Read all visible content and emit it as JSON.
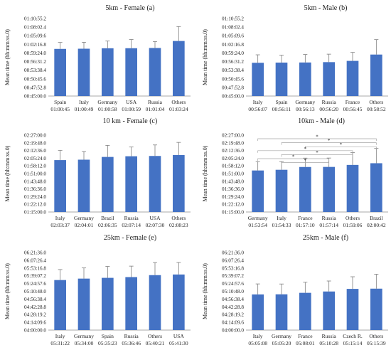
{
  "colors": {
    "bar": "#4472C4",
    "axis": "#8c8c8c",
    "error_bar": "#7f7f7f",
    "bracket": "#a6a6a6",
    "text": "#222222"
  },
  "ylabel": "Mean time (hh:mm:ss.0)",
  "chart_data": [
    {
      "id": "a",
      "type": "bar",
      "title": "5km - Female (a)",
      "ylabel": "Mean time (hh:mm:ss.0)",
      "ylim_seconds": [
        2700,
        4255.2
      ],
      "yticks": [
        "00:45:00.0",
        "00:47:52.8",
        "00:50:45.6",
        "00:53:38.4",
        "00:56:31.2",
        "00:59:24.0",
        "01:02:16.8",
        "01:05:09.6",
        "01:08:02.4",
        "01:10:55.2"
      ],
      "categories": [
        "Spain",
        "Italy",
        "Germany",
        "USA",
        "Russia",
        "Others"
      ],
      "value_labels": [
        "01:00:45",
        "01:00:49",
        "01:00:58",
        "01:00:59",
        "01:01:04",
        "01:03:24"
      ],
      "values_seconds": [
        3645,
        3649,
        3658,
        3659,
        3664,
        3804
      ],
      "error_seconds": [
        130,
        130,
        145,
        175,
        130,
        290
      ],
      "significance": []
    },
    {
      "id": "b",
      "type": "bar",
      "title": "5km - Male (b)",
      "ylabel": "Mean time (hh:mm:ss.0)",
      "ylim_seconds": [
        2700,
        4255.2
      ],
      "yticks": [
        "00:45:00.0",
        "00:47:52.8",
        "00:50:45.6",
        "00:53:38.4",
        "00:56:31.2",
        "00:59:24.0",
        "01:02:16.8",
        "01:05:09.6",
        "01:08:02.4",
        "01:10:55.2"
      ],
      "categories": [
        "Italy",
        "Spain",
        "Germany",
        "Russia",
        "France",
        "Others"
      ],
      "value_labels": [
        "00:56:07",
        "00:56:11",
        "00:56:13",
        "00:56:20",
        "00:56:45",
        "00:58:52"
      ],
      "values_seconds": [
        3367,
        3371,
        3373,
        3380,
        3405,
        3532
      ],
      "error_seconds": [
        160,
        150,
        160,
        160,
        170,
        300
      ],
      "significance": []
    },
    {
      "id": "c",
      "type": "bar",
      "title": "10 km - Female (c)",
      "ylabel": "Mean time (hh:mm:ss.0)",
      "ylim_seconds": [
        4500,
        8820
      ],
      "yticks": [
        "01:15:00.0",
        "01:22:12.0",
        "01:29:24.0",
        "01:36:36.0",
        "01:43:48.0",
        "01:51:00.0",
        "01:58:12.0",
        "02:05:24.0",
        "02:12:36.0",
        "02:19:48.0",
        "02:27:00.0"
      ],
      "categories": [
        "Italy",
        "Germany",
        "Brazil",
        "Russia",
        "USA",
        "Others"
      ],
      "value_labels": [
        "02:03:37",
        "02:04:01",
        "02:06:35",
        "02:07:14",
        "02:07:30",
        "02:08:23"
      ],
      "values_seconds": [
        7417,
        7441,
        7595,
        7634,
        7650,
        7703
      ],
      "error_seconds": [
        550,
        460,
        650,
        520,
        620,
        710
      ],
      "significance": []
    },
    {
      "id": "d",
      "type": "bar",
      "title": "10km - Male (d)",
      "ylabel": "Mean time (hh:mm:ss.0)",
      "ylim_seconds": [
        4500,
        8820
      ],
      "yticks": [
        "01:15:00.0",
        "01:22:12.0",
        "01:29:24.0",
        "01:36:36.0",
        "01:43:48.0",
        "01:51:00.0",
        "01:58:12.0",
        "02:05:24.0",
        "02:12:36.0",
        "02:19:48.0",
        "02:27:00.0"
      ],
      "categories": [
        "Germany",
        "Italy",
        "France",
        "Russia",
        "Others",
        "Brazil"
      ],
      "value_labels": [
        "01:53:54",
        "01:54:33",
        "01:57:10",
        "01:57:14",
        "01:59:06",
        "02:00:42"
      ],
      "values_seconds": [
        6834,
        6873,
        7030,
        7034,
        7146,
        7242
      ],
      "error_seconds": [
        500,
        460,
        500,
        500,
        690,
        830
      ],
      "significance": [
        {
          "from": 0,
          "to": 5,
          "label": "*"
        },
        {
          "from": 1,
          "to": 5,
          "label": "*"
        },
        {
          "from": 2,
          "to": 5,
          "label": "*"
        },
        {
          "from": 0,
          "to": 4,
          "label": "*"
        },
        {
          "from": 1,
          "to": 4,
          "label": "*"
        },
        {
          "from": 0,
          "to": 3,
          "label": "*"
        },
        {
          "from": 1,
          "to": 3,
          "label": "*"
        }
      ]
    },
    {
      "id": "e",
      "type": "bar",
      "title": "25km - Female (e)",
      "ylabel": "Mean time (hh:mm:ss.0)",
      "ylim_seconds": [
        14400,
        22896
      ],
      "yticks": [
        "04:00:00.0",
        "04:14:09.6",
        "04:28:19.2",
        "04:42:28.8",
        "04:56:38.4",
        "05:10:48.0",
        "05:24:57.6",
        "05:39:07.2",
        "05:53:16.8",
        "06:07:26.4",
        "06:21:36.0"
      ],
      "categories": [
        "Italy",
        "Germany",
        "Spain",
        "Russia",
        "Others",
        "USA"
      ],
      "value_labels": [
        "05:31:22",
        "05:34:00",
        "05:35:23",
        "05:36:46",
        "05:40:21",
        "05:41:30"
      ],
      "values_seconds": [
        19882,
        20040,
        20123,
        20206,
        20421,
        20490
      ],
      "error_seconds": [
        1150,
        1170,
        1250,
        1200,
        1380,
        1320
      ],
      "significance": []
    },
    {
      "id": "f",
      "type": "bar",
      "title": "25km - Male (f)",
      "ylabel": "Mean time (hh:mm:ss.0)",
      "ylim_seconds": [
        14400,
        22896
      ],
      "yticks": [
        "04:00:00.0",
        "04:14:09.6",
        "04:28:19.2",
        "04:42:28.8",
        "04:56:38.4",
        "05:10:48.0",
        "05:24:57.6",
        "05:39:07.2",
        "05:53:16.8",
        "06:07:26.4",
        "06:21:36.0"
      ],
      "categories": [
        "Italy",
        "Germany",
        "France",
        "Russia",
        "Czech R.",
        "Others"
      ],
      "value_labels": [
        "05:05:08",
        "05:05:20",
        "05:08:01",
        "05:10:28",
        "05:15:14",
        "05:15:39"
      ],
      "values_seconds": [
        18308,
        18320,
        18481,
        18628,
        18914,
        18939
      ],
      "error_seconds": [
        1150,
        1130,
        1160,
        1150,
        1330,
        1580
      ],
      "significance": []
    }
  ]
}
